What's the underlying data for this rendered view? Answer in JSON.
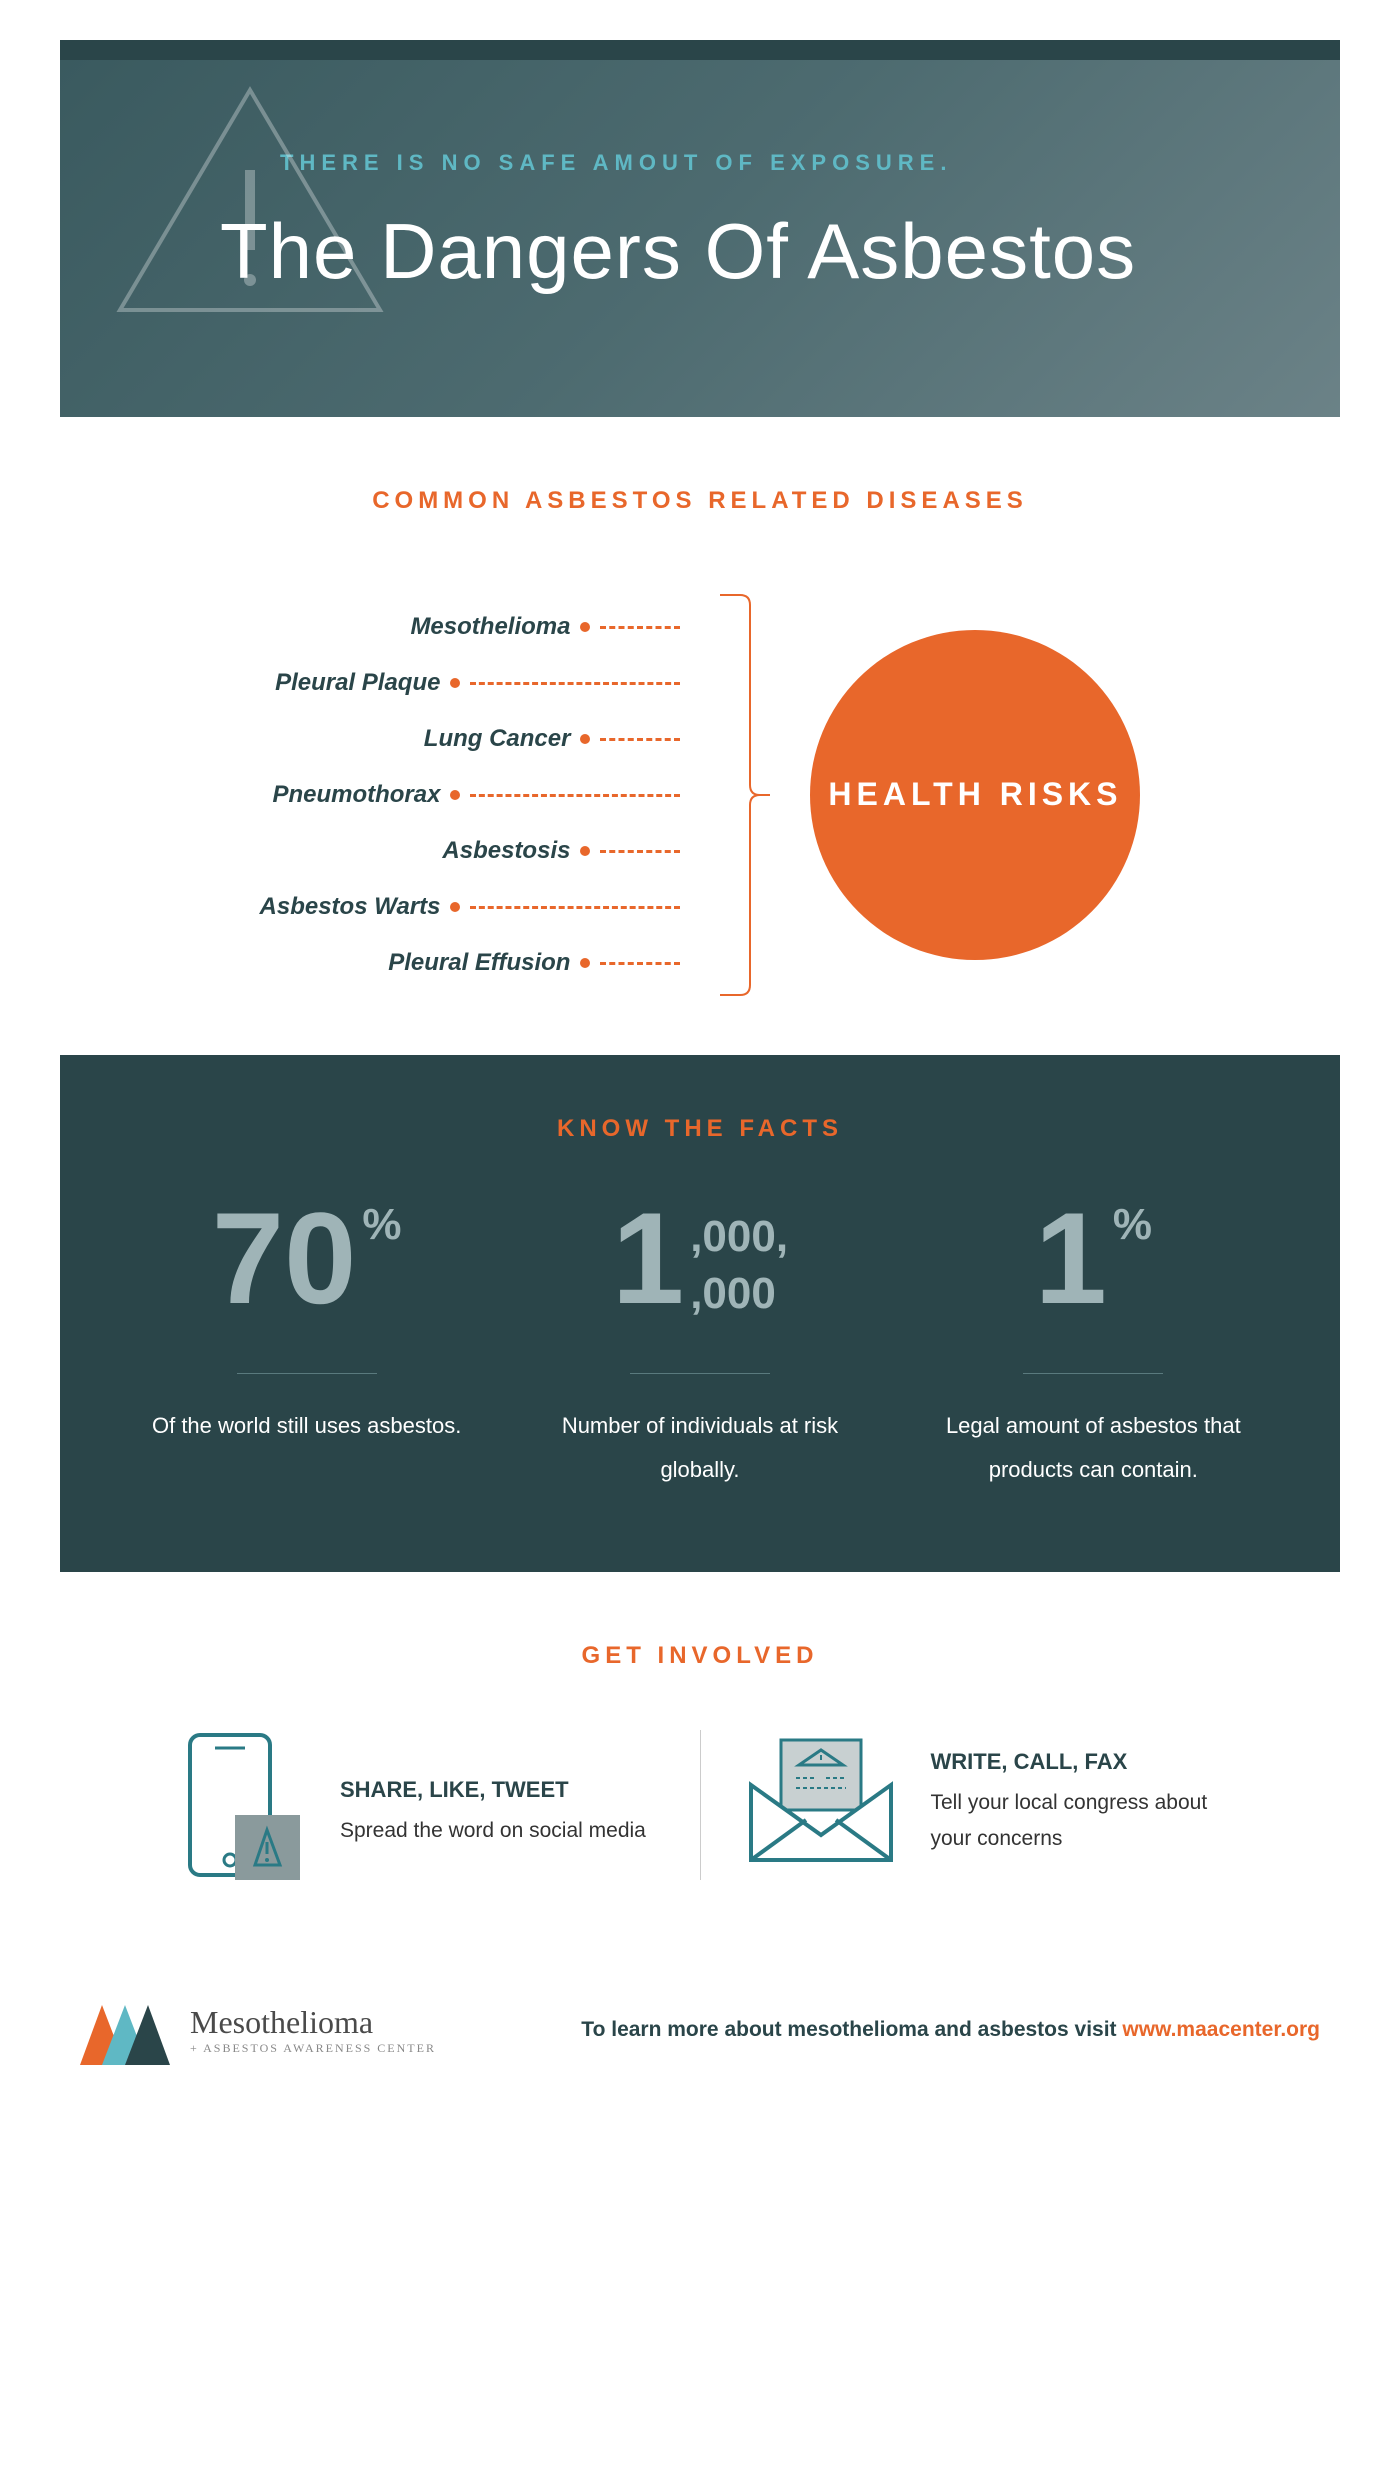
{
  "colors": {
    "accent_orange": "#e8672b",
    "dark_teal": "#2a4549",
    "cyan": "#5fb8c4",
    "muted_teal_text": "#9fb4b7",
    "white": "#ffffff"
  },
  "hero": {
    "subtitle": "THERE IS NO SAFE AMOUT OF EXPOSURE.",
    "title": "The Dangers Of Asbestos"
  },
  "diseases": {
    "heading": "COMMON ASBESTOS RELATED DISEASES",
    "circle_label": "HEALTH RISKS",
    "items": [
      {
        "label": "Mesothelioma",
        "dash_width": 80
      },
      {
        "label": "Pleural Plaque",
        "dash_width": 210
      },
      {
        "label": "Lung Cancer",
        "dash_width": 80
      },
      {
        "label": "Pneumothorax",
        "dash_width": 210
      },
      {
        "label": "Asbestosis",
        "dash_width": 80
      },
      {
        "label": "Asbestos Warts",
        "dash_width": 210
      },
      {
        "label": "Pleural Effusion",
        "dash_width": 80
      }
    ]
  },
  "facts": {
    "heading": "KNOW THE FACTS",
    "items": [
      {
        "big": "70",
        "small": "%",
        "stacked": null,
        "description": "Of the world still uses asbestos."
      },
      {
        "big": "1",
        "small": null,
        "stacked": [
          ",000,",
          ",000"
        ],
        "description": "Number of individuals at risk globally."
      },
      {
        "big": "1",
        "small": "%",
        "stacked": null,
        "description": "Legal amount of asbestos that products can contain."
      }
    ]
  },
  "involved": {
    "heading": "GET INVOLVED",
    "items": [
      {
        "title": "SHARE, LIKE, TWEET",
        "subtitle": "Spread the word on social media",
        "icon": "phone"
      },
      {
        "title": "WRITE, CALL, FAX",
        "subtitle": "Tell your local congress about your concerns",
        "icon": "envelope"
      }
    ]
  },
  "footer": {
    "brand_main": "Mesothelioma",
    "brand_sub": "+ ASBESTOS AWARENESS CENTER",
    "text_prefix": "To learn more about mesothelioma and asbestos visit ",
    "link": "www.maacenter.org"
  }
}
